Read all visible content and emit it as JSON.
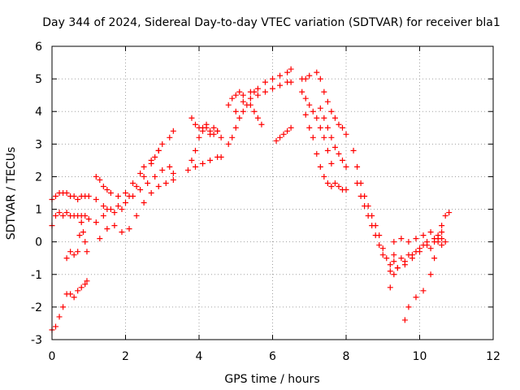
{
  "chart_data": {
    "type": "scatter",
    "title": "Day 344 of 2024, Sidereal Day-to-day VTEC variation (SDTVAR) for receiver bla1",
    "xlabel": "GPS time / hours",
    "ylabel": "SDTVAR / TECUs",
    "xlim": [
      0,
      12
    ],
    "ylim": [
      -3,
      6
    ],
    "x_ticks": [
      "0",
      "2",
      "4",
      "6",
      "8",
      "10",
      "12"
    ],
    "y_ticks": [
      "-3",
      "-2",
      "-1",
      "0",
      "1",
      "2",
      "3",
      "4",
      "5",
      "6"
    ],
    "grid": true,
    "marker": "plus",
    "color": "#ff0000",
    "series": [
      {
        "points": [
          [
            0.0,
            -2.7
          ],
          [
            0.1,
            -2.6
          ],
          [
            0.2,
            -2.3
          ],
          [
            0.3,
            -2.0
          ],
          [
            0.4,
            -1.6
          ],
          [
            0.5,
            -1.6
          ],
          [
            0.6,
            -1.7
          ],
          [
            0.7,
            -1.5
          ],
          [
            0.8,
            -1.4
          ],
          [
            0.9,
            -1.3
          ],
          [
            0.95,
            -1.2
          ]
        ]
      },
      {
        "points": [
          [
            0.0,
            1.3
          ],
          [
            0.1,
            1.4
          ],
          [
            0.2,
            1.5
          ],
          [
            0.3,
            1.5
          ],
          [
            0.4,
            1.5
          ],
          [
            0.5,
            1.4
          ],
          [
            0.6,
            1.4
          ],
          [
            0.7,
            1.3
          ],
          [
            0.8,
            1.4
          ],
          [
            0.9,
            1.4
          ],
          [
            1.0,
            1.4
          ]
        ]
      },
      {
        "points": [
          [
            0.0,
            0.5
          ],
          [
            0.1,
            0.8
          ],
          [
            0.2,
            0.9
          ],
          [
            0.3,
            0.8
          ],
          [
            0.4,
            0.9
          ],
          [
            0.5,
            0.8
          ],
          [
            0.6,
            0.8
          ],
          [
            0.7,
            0.8
          ],
          [
            0.8,
            0.8
          ],
          [
            0.9,
            0.8
          ],
          [
            1.0,
            0.7
          ]
        ]
      },
      {
        "points": [
          [
            0.4,
            -0.5
          ],
          [
            0.5,
            -0.3
          ],
          [
            0.6,
            -0.4
          ],
          [
            0.7,
            -0.3
          ],
          [
            0.75,
            0.2
          ],
          [
            0.8,
            0.6
          ],
          [
            0.85,
            0.3
          ],
          [
            0.9,
            0.0
          ],
          [
            0.95,
            -0.3
          ]
        ]
      },
      {
        "points": [
          [
            1.2,
            2.0
          ],
          [
            1.3,
            1.9
          ],
          [
            1.4,
            1.7
          ],
          [
            1.5,
            1.6
          ],
          [
            1.6,
            1.5
          ],
          [
            1.8,
            1.4
          ],
          [
            2.0,
            1.5
          ],
          [
            2.2,
            1.8
          ],
          [
            2.4,
            2.1
          ],
          [
            2.5,
            2.3
          ],
          [
            2.7,
            2.5
          ],
          [
            2.9,
            2.8
          ],
          [
            3.0,
            3.0
          ],
          [
            3.2,
            3.2
          ],
          [
            3.3,
            3.4
          ]
        ]
      },
      {
        "points": [
          [
            1.2,
            1.3
          ],
          [
            1.4,
            1.1
          ],
          [
            1.5,
            1.0
          ],
          [
            1.7,
            0.9
          ],
          [
            1.9,
            1.0
          ],
          [
            2.1,
            1.4
          ],
          [
            2.3,
            1.7
          ],
          [
            2.5,
            2.0
          ],
          [
            2.7,
            2.4
          ],
          [
            2.8,
            2.6
          ],
          [
            2.9,
            2.8
          ]
        ]
      },
      {
        "points": [
          [
            1.2,
            0.6
          ],
          [
            1.4,
            0.8
          ],
          [
            1.6,
            1.0
          ],
          [
            1.8,
            1.1
          ],
          [
            2.0,
            1.2
          ],
          [
            2.2,
            1.4
          ],
          [
            2.4,
            1.6
          ],
          [
            2.6,
            1.8
          ],
          [
            2.8,
            2.0
          ],
          [
            3.0,
            2.2
          ],
          [
            3.2,
            2.3
          ],
          [
            3.3,
            2.1
          ]
        ]
      },
      {
        "points": [
          [
            1.3,
            0.1
          ],
          [
            1.5,
            0.4
          ],
          [
            1.7,
            0.5
          ],
          [
            1.9,
            0.3
          ],
          [
            2.1,
            0.4
          ],
          [
            2.3,
            0.8
          ],
          [
            2.5,
            1.2
          ],
          [
            2.7,
            1.5
          ],
          [
            2.9,
            1.7
          ],
          [
            3.1,
            1.8
          ],
          [
            3.3,
            1.9
          ]
        ]
      },
      {
        "points": [
          [
            3.7,
            2.2
          ],
          [
            3.8,
            2.5
          ],
          [
            3.9,
            2.8
          ],
          [
            4.0,
            3.2
          ],
          [
            4.1,
            3.5
          ],
          [
            4.2,
            3.6
          ],
          [
            4.3,
            3.4
          ],
          [
            4.4,
            3.5
          ],
          [
            4.5,
            3.4
          ],
          [
            4.6,
            3.2
          ]
        ]
      },
      {
        "points": [
          [
            3.8,
            3.8
          ],
          [
            3.9,
            3.6
          ],
          [
            4.0,
            3.5
          ],
          [
            4.1,
            3.4
          ],
          [
            4.2,
            3.5
          ],
          [
            4.3,
            3.3
          ],
          [
            4.4,
            3.3
          ],
          [
            4.5,
            3.4
          ]
        ]
      },
      {
        "points": [
          [
            3.9,
            2.3
          ],
          [
            4.1,
            2.4
          ],
          [
            4.3,
            2.5
          ],
          [
            4.5,
            2.6
          ],
          [
            4.6,
            2.6
          ]
        ]
      },
      {
        "points": [
          [
            4.8,
            3.0
          ],
          [
            4.9,
            3.2
          ],
          [
            5.0,
            3.5
          ],
          [
            5.1,
            3.8
          ],
          [
            5.2,
            4.0
          ],
          [
            5.3,
            4.2
          ],
          [
            5.4,
            4.4
          ],
          [
            5.5,
            4.6
          ],
          [
            5.6,
            4.7
          ],
          [
            5.8,
            4.9
          ],
          [
            6.0,
            5.0
          ],
          [
            6.2,
            5.1
          ],
          [
            6.4,
            5.2
          ],
          [
            6.5,
            5.3
          ]
        ]
      },
      {
        "points": [
          [
            4.8,
            4.2
          ],
          [
            4.9,
            4.4
          ],
          [
            5.0,
            4.5
          ],
          [
            5.1,
            4.6
          ],
          [
            5.2,
            4.5
          ],
          [
            5.4,
            4.6
          ],
          [
            5.6,
            4.5
          ],
          [
            5.8,
            4.6
          ],
          [
            6.0,
            4.7
          ],
          [
            6.2,
            4.8
          ],
          [
            6.4,
            4.9
          ],
          [
            6.5,
            4.9
          ]
        ]
      },
      {
        "points": [
          [
            5.0,
            4.0
          ],
          [
            5.2,
            4.3
          ],
          [
            5.4,
            4.2
          ],
          [
            5.5,
            4.0
          ],
          [
            5.6,
            3.8
          ],
          [
            5.7,
            3.6
          ]
        ]
      },
      {
        "points": [
          [
            6.1,
            3.1
          ],
          [
            6.2,
            3.2
          ],
          [
            6.3,
            3.3
          ],
          [
            6.4,
            3.4
          ],
          [
            6.5,
            3.5
          ]
        ]
      },
      {
        "points": [
          [
            6.8,
            5.0
          ],
          [
            6.9,
            5.0
          ],
          [
            7.0,
            5.1
          ],
          [
            6.8,
            4.6
          ],
          [
            6.9,
            4.4
          ],
          [
            7.0,
            4.2
          ],
          [
            7.1,
            4.0
          ],
          [
            7.2,
            3.8
          ],
          [
            7.3,
            3.5
          ],
          [
            7.4,
            3.2
          ],
          [
            7.5,
            2.8
          ],
          [
            7.6,
            2.4
          ]
        ]
      },
      {
        "points": [
          [
            7.2,
            5.2
          ],
          [
            7.3,
            5.0
          ],
          [
            7.4,
            4.6
          ],
          [
            7.5,
            4.3
          ],
          [
            7.6,
            4.0
          ],
          [
            7.7,
            3.8
          ],
          [
            7.8,
            3.6
          ],
          [
            7.9,
            3.5
          ],
          [
            8.0,
            3.3
          ]
        ]
      },
      {
        "points": [
          [
            6.9,
            3.9
          ],
          [
            7.0,
            3.5
          ],
          [
            7.1,
            3.2
          ],
          [
            7.2,
            2.7
          ],
          [
            7.3,
            2.3
          ],
          [
            7.4,
            2.0
          ],
          [
            7.5,
            1.8
          ],
          [
            7.6,
            1.7
          ],
          [
            7.7,
            1.8
          ],
          [
            7.8,
            1.7
          ],
          [
            7.9,
            1.6
          ],
          [
            8.0,
            1.6
          ]
        ]
      },
      {
        "points": [
          [
            7.3,
            4.1
          ],
          [
            7.4,
            3.8
          ],
          [
            7.5,
            3.5
          ],
          [
            7.6,
            3.2
          ],
          [
            7.7,
            2.9
          ],
          [
            7.8,
            2.7
          ],
          [
            7.9,
            2.5
          ],
          [
            8.0,
            2.3
          ]
        ]
      },
      {
        "points": [
          [
            8.2,
            2.8
          ],
          [
            8.3,
            2.3
          ],
          [
            8.4,
            1.8
          ],
          [
            8.5,
            1.4
          ],
          [
            8.6,
            1.1
          ],
          [
            8.7,
            0.8
          ],
          [
            8.8,
            0.5
          ],
          [
            8.9,
            0.2
          ],
          [
            9.0,
            -0.2
          ],
          [
            9.1,
            -0.5
          ],
          [
            9.2,
            -0.7
          ],
          [
            9.3,
            -0.6
          ]
        ]
      },
      {
        "points": [
          [
            8.3,
            1.8
          ],
          [
            8.4,
            1.4
          ],
          [
            8.5,
            1.1
          ],
          [
            8.6,
            0.8
          ],
          [
            8.7,
            0.5
          ],
          [
            8.8,
            0.2
          ],
          [
            8.9,
            -0.1
          ],
          [
            9.0,
            -0.4
          ]
        ]
      },
      {
        "points": [
          [
            9.2,
            -0.9
          ],
          [
            9.4,
            -0.8
          ],
          [
            9.6,
            -0.7
          ],
          [
            9.8,
            -0.5
          ],
          [
            10.0,
            -0.3
          ],
          [
            10.2,
            -0.1
          ],
          [
            10.4,
            0.1
          ],
          [
            10.6,
            0.3
          ]
        ]
      },
      {
        "points": [
          [
            9.2,
            -1.4
          ],
          [
            9.3,
            -1.0
          ],
          [
            9.4,
            -0.8
          ],
          [
            9.6,
            -0.6
          ],
          [
            9.8,
            -0.4
          ],
          [
            10.0,
            -0.2
          ],
          [
            10.2,
            0.0
          ],
          [
            10.4,
            0.0
          ],
          [
            10.6,
            -0.1
          ]
        ]
      },
      {
        "points": [
          [
            9.3,
            0.0
          ],
          [
            9.5,
            0.1
          ],
          [
            9.7,
            0.0
          ],
          [
            9.9,
            0.1
          ],
          [
            10.1,
            0.2
          ],
          [
            10.3,
            0.3
          ],
          [
            10.5,
            0.2
          ],
          [
            10.6,
            0.1
          ]
        ]
      },
      {
        "points": [
          [
            9.6,
            -2.4
          ],
          [
            9.7,
            -2.0
          ],
          [
            9.9,
            -1.7
          ],
          [
            10.1,
            -1.5
          ],
          [
            10.3,
            -1.0
          ],
          [
            10.4,
            -0.5
          ],
          [
            10.5,
            0.1
          ],
          [
            10.6,
            0.5
          ],
          [
            10.7,
            0.8
          ],
          [
            10.8,
            0.9
          ]
        ]
      },
      {
        "points": [
          [
            9.3,
            -0.4
          ],
          [
            9.5,
            -0.5
          ],
          [
            9.7,
            -0.4
          ],
          [
            9.9,
            -0.3
          ],
          [
            10.1,
            -0.1
          ],
          [
            10.3,
            -0.2
          ],
          [
            10.5,
            0.0
          ],
          [
            10.7,
            0.0
          ]
        ]
      }
    ]
  }
}
